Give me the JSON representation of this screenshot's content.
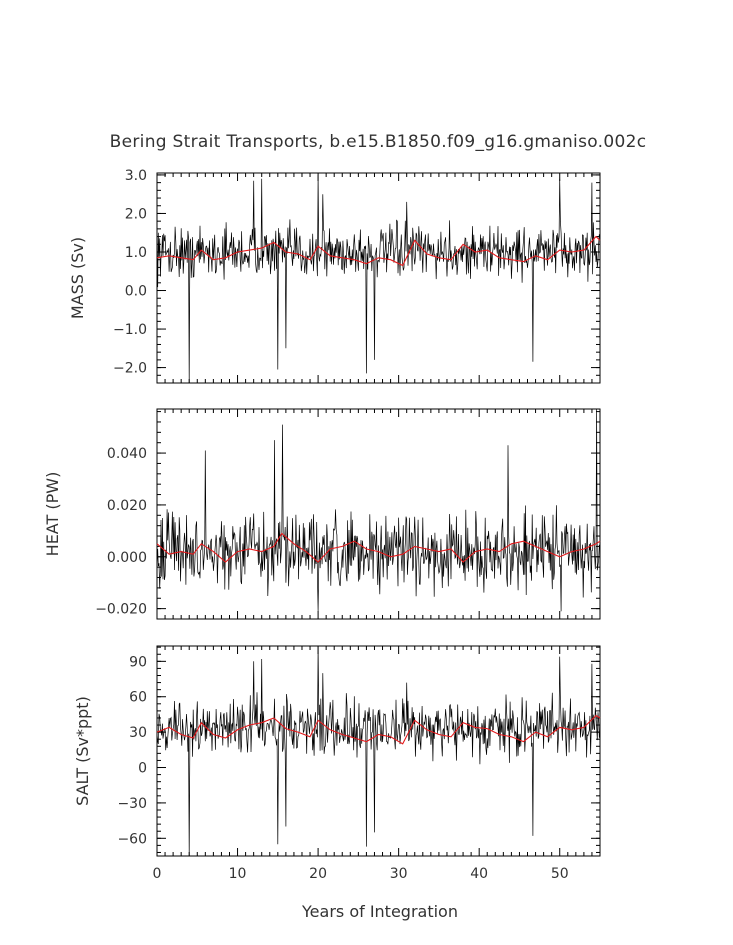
{
  "chart_data": [
    {
      "type": "line",
      "panel": "mass",
      "title": "Bering Strait Transports, b.e15.B1850.f09_g16.gmaniso.002c",
      "xlabel": "",
      "ylabel": "MASS (Sv)",
      "xlim": [
        0,
        55
      ],
      "ylim": [
        -2.4,
        3.05
      ],
      "yticks": [
        3.0,
        2.0,
        1.0,
        0.0,
        -1.0,
        -2.0
      ],
      "ytick_labels": [
        "3.0",
        "2.0",
        "1.0",
        "0.0",
        "−1.0",
        "−2.0"
      ],
      "mean": 1.0,
      "noise": 0.42,
      "smooth_x": [
        0,
        1.5,
        3,
        4.5,
        5.5,
        7,
        8.5,
        10,
        11.5,
        13,
        14.5,
        16,
        17.5,
        19,
        20,
        21.5,
        23,
        24.5,
        26,
        27.5,
        29,
        30.5,
        32,
        33.5,
        35,
        36.5,
        38,
        39.5,
        41,
        42.5,
        44,
        45.5,
        47,
        48.5,
        50,
        51.5,
        53,
        54.5,
        55
      ],
      "smooth_y": [
        0.85,
        0.9,
        0.85,
        0.8,
        1.05,
        0.8,
        0.85,
        1.0,
        1.05,
        1.1,
        1.25,
        1.0,
        0.95,
        0.8,
        1.15,
        0.9,
        0.85,
        0.8,
        0.7,
        0.85,
        0.8,
        0.65,
        1.3,
        0.95,
        0.85,
        0.8,
        1.2,
        1.0,
        1.05,
        0.85,
        0.8,
        0.75,
        0.9,
        0.8,
        1.05,
        1.0,
        1.05,
        1.4,
        1.3
      ],
      "spikes": [
        [
          4.0,
          -2.4
        ],
        [
          12.0,
          2.85
        ],
        [
          13.0,
          2.9
        ],
        [
          15.0,
          -2.05
        ],
        [
          16.0,
          -1.5
        ],
        [
          20.0,
          3.0
        ],
        [
          20.6,
          2.5
        ],
        [
          26.0,
          -2.15
        ],
        [
          27.0,
          -1.8
        ],
        [
          31.0,
          2.3
        ],
        [
          46.7,
          -1.85
        ],
        [
          50.0,
          2.9
        ],
        [
          54.0,
          2.8
        ]
      ]
    },
    {
      "type": "line",
      "panel": "heat",
      "xlabel": "",
      "ylabel": "HEAT (PW)",
      "xlim": [
        0,
        55
      ],
      "ylim": [
        -0.024,
        0.057
      ],
      "yticks": [
        0.04,
        0.02,
        0.0,
        -0.02
      ],
      "ytick_labels": [
        "0.040",
        "0.020",
        "0.000",
        "−0.020"
      ],
      "mean": 0.002,
      "noise": 0.009,
      "smooth_x": [
        0,
        1.5,
        3,
        4.5,
        5.5,
        7,
        8.5,
        10,
        11.5,
        13,
        14.5,
        15.5,
        17,
        18.5,
        20,
        21.5,
        23,
        24.5,
        26,
        27.5,
        29,
        30.5,
        32,
        33.5,
        35,
        36.5,
        38,
        39.5,
        41,
        42.5,
        44,
        45.5,
        47,
        48.5,
        50,
        51.5,
        53,
        54.5,
        55
      ],
      "smooth_y": [
        0.005,
        0.001,
        0.002,
        0.001,
        0.005,
        0.002,
        -0.002,
        0.002,
        0.003,
        0.002,
        0.004,
        0.009,
        0.005,
        0.002,
        -0.002,
        0.003,
        0.004,
        0.006,
        0.003,
        0.002,
        0.0,
        0.001,
        0.004,
        0.003,
        0.002,
        0.003,
        -0.002,
        0.002,
        0.003,
        0.002,
        0.005,
        0.006,
        0.004,
        0.002,
        0.0,
        0.002,
        0.003,
        0.005,
        0.006
      ],
      "spikes": [
        [
          6.0,
          0.041
        ],
        [
          14.6,
          0.045
        ],
        [
          15.6,
          0.051
        ],
        [
          20.0,
          -0.021
        ],
        [
          43.6,
          0.043
        ],
        [
          50.2,
          -0.021
        ],
        [
          54.6,
          0.057
        ]
      ]
    },
    {
      "type": "line",
      "panel": "salt",
      "xlabel": "Years of Integration",
      "ylabel": "SALT (Sv*ppt)",
      "xlim": [
        0,
        55
      ],
      "ylim": [
        -75,
        103
      ],
      "yticks": [
        90,
        60,
        30,
        0,
        -30,
        -60
      ],
      "ytick_labels": [
        "90",
        "60",
        "30",
        "0",
        "−30",
        "−60"
      ],
      "xticks": [
        0,
        10,
        20,
        30,
        40,
        50
      ],
      "xtick_labels": [
        "0",
        "10",
        "20",
        "30",
        "40",
        "50"
      ],
      "mean": 33,
      "noise": 15,
      "smooth_x": [
        0,
        1.5,
        3,
        4.5,
        5.5,
        7,
        8.5,
        10,
        11.5,
        13,
        14.5,
        16,
        17.5,
        19,
        20,
        21.5,
        23,
        24.5,
        26,
        27.5,
        29,
        30.5,
        32,
        33.5,
        35,
        36.5,
        38,
        39.5,
        41,
        42.5,
        44,
        45.5,
        47,
        48.5,
        50,
        51.5,
        53,
        54.5,
        55
      ],
      "smooth_y": [
        30,
        34,
        28,
        25,
        38,
        28,
        25,
        32,
        36,
        38,
        42,
        33,
        30,
        26,
        40,
        32,
        28,
        25,
        22,
        28,
        26,
        20,
        40,
        32,
        28,
        26,
        38,
        34,
        33,
        28,
        26,
        22,
        30,
        26,
        34,
        32,
        34,
        44,
        42
      ],
      "spikes": [
        [
          4.0,
          -75
        ],
        [
          12.0,
          90
        ],
        [
          13.0,
          92
        ],
        [
          15.0,
          -65
        ],
        [
          16.0,
          -50
        ],
        [
          20.0,
          103
        ],
        [
          20.6,
          80
        ],
        [
          26.0,
          -67
        ],
        [
          27.0,
          -55
        ],
        [
          31.0,
          72
        ],
        [
          46.7,
          -58
        ],
        [
          50.0,
          94
        ],
        [
          54.0,
          88
        ]
      ]
    }
  ]
}
